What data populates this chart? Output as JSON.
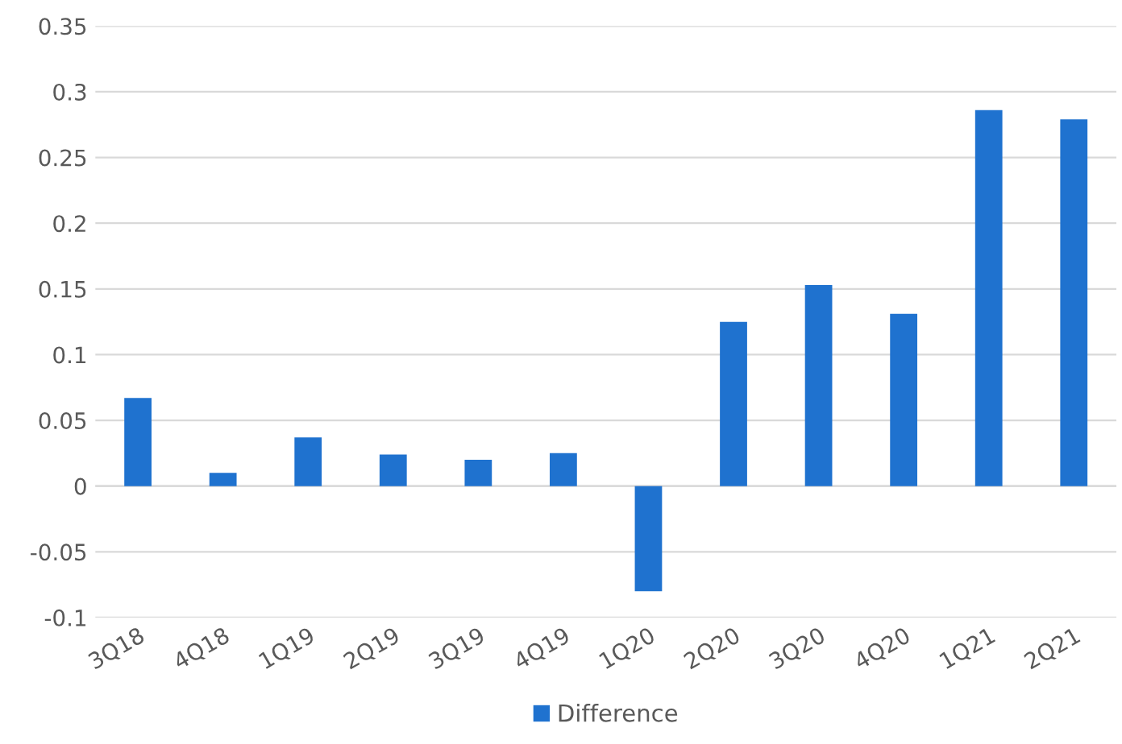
{
  "chart_data": {
    "type": "bar",
    "categories": [
      "3Q18",
      "4Q18",
      "1Q19",
      "2Q19",
      "3Q19",
      "4Q19",
      "1Q20",
      "2Q20",
      "3Q20",
      "4Q20",
      "1Q21",
      "2Q21"
    ],
    "series": [
      {
        "name": "Difference",
        "color": "#1f72cf",
        "values": [
          0.067,
          0.01,
          0.037,
          0.024,
          0.02,
          0.025,
          -0.08,
          0.125,
          0.153,
          0.131,
          0.286,
          0.279
        ]
      }
    ],
    "ylim": [
      -0.1,
      0.35
    ],
    "yticks": [
      {
        "value": -0.1,
        "label": "-0.1"
      },
      {
        "value": -0.05,
        "label": "-0.05"
      },
      0,
      0.05,
      0.1,
      0.15,
      0.2,
      0.25,
      0.3,
      0.35
    ],
    "grid": "y",
    "legend": "bottom"
  }
}
